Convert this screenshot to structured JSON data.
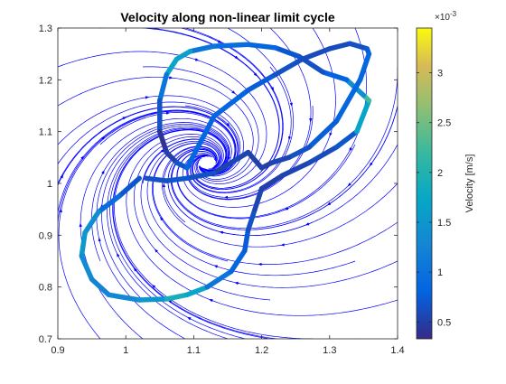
{
  "chart_data": {
    "type": "line",
    "title": "Velocity along non-linear limit cycle",
    "xlabel": "",
    "ylabel": "",
    "xlim": [
      0.9,
      1.4
    ],
    "ylim": [
      0.7,
      1.3
    ],
    "xticks": [
      0.9,
      1.0,
      1.1,
      1.2,
      1.3,
      1.4
    ],
    "xtick_labels": [
      "0.9",
      "1",
      "1.1",
      "1.2",
      "1.3",
      "1.4"
    ],
    "yticks": [
      0.7,
      0.8,
      0.9,
      1.0,
      1.1,
      1.2,
      1.3
    ],
    "ytick_labels": [
      "0.7",
      "0.8",
      "0.9",
      "1",
      "1.1",
      "1.2",
      "1.3"
    ],
    "grid": false,
    "background_field": {
      "type": "streamlines",
      "color": "#0000ff",
      "center": [
        1.12,
        1.04
      ]
    },
    "limit_cycle": {
      "x": [
        1.02,
        0.99,
        0.96,
        0.94,
        0.935,
        0.95,
        0.975,
        1.02,
        1.06,
        1.09,
        1.12,
        1.155,
        1.175,
        1.18,
        1.19,
        1.2,
        1.23,
        1.27,
        1.31,
        1.34,
        1.358,
        1.35,
        1.325,
        1.29,
        1.255,
        1.22,
        1.18,
        1.13,
        1.095,
        1.075,
        1.06,
        1.05,
        1.05,
        1.06,
        1.075,
        1.09,
        1.13,
        1.18,
        1.22,
        1.26,
        1.3,
        1.33,
        1.355,
        1.358,
        1.345,
        1.31,
        1.27,
        1.24,
        1.215,
        1.2,
        1.18,
        1.13,
        1.09,
        1.06,
        1.03
      ],
      "y": [
        1.01,
        0.975,
        0.945,
        0.905,
        0.86,
        0.815,
        0.785,
        0.775,
        0.777,
        0.785,
        0.8,
        0.83,
        0.87,
        0.91,
        0.95,
        0.99,
        1.015,
        1.04,
        1.07,
        1.1,
        1.16,
        1.17,
        1.2,
        1.215,
        1.245,
        1.262,
        1.268,
        1.265,
        1.255,
        1.24,
        1.21,
        1.16,
        1.1,
        1.06,
        1.04,
        1.03,
        1.13,
        1.18,
        1.21,
        1.24,
        1.26,
        1.27,
        1.26,
        1.25,
        1.2,
        1.12,
        1.07,
        1.05,
        1.04,
        1.03,
        1.06,
        1.02,
        1.01,
        1.005,
        1.01
      ],
      "velocity": [
        0.0006,
        0.0008,
        0.0011,
        0.0017,
        0.0014,
        0.0013,
        0.0012,
        0.0014,
        0.0016,
        0.0022,
        0.0012,
        0.0009,
        0.0008,
        0.0007,
        0.0006,
        0.0005,
        0.0005,
        0.0006,
        0.0006,
        0.0008,
        0.0026,
        0.0019,
        0.0009,
        0.0007,
        0.0006,
        0.0008,
        0.0009,
        0.001,
        0.0011,
        0.0022,
        0.0012,
        0.0009,
        0.0004,
        0.0004,
        0.0006,
        0.0008,
        0.0009,
        0.0008,
        0.0007,
        0.0006,
        0.0006,
        0.0006,
        0.0007,
        0.0008,
        0.0009,
        0.0008,
        0.0007,
        0.0006,
        0.0005,
        0.0005,
        0.0005,
        0.0006,
        0.0007,
        0.0007,
        0.0006
      ]
    },
    "colorbar": {
      "label": "Velocity [m/s]",
      "exponent_label": "×10",
      "exponent_power": "-3",
      "range": [
        0.00033,
        0.00345
      ],
      "ticks": [
        0.0005,
        0.001,
        0.0015,
        0.002,
        0.0025,
        0.003
      ],
      "tick_labels": [
        "0.5",
        "1",
        "1.5",
        "2",
        "2.5",
        "3"
      ],
      "colormap": "parula"
    }
  }
}
